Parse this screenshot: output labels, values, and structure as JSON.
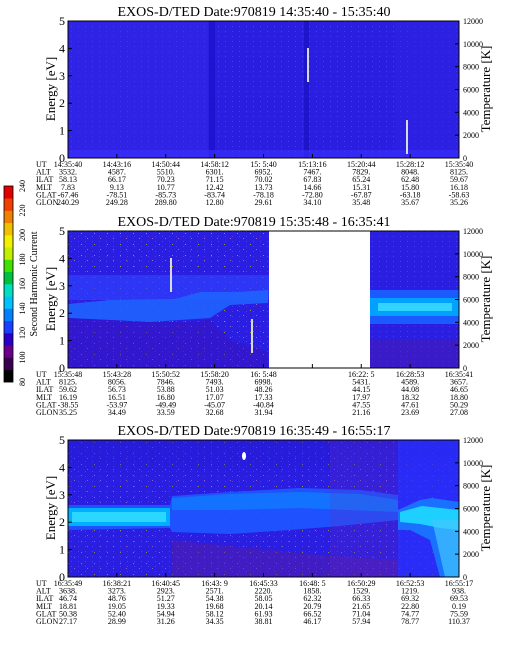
{
  "colorbar": {
    "label": "Second Harmonic Current",
    "ticks": [
      "80",
      "100",
      "120",
      "140",
      "160",
      "180",
      "200",
      "220",
      "240"
    ],
    "colors": [
      "#000000",
      "#3a0050",
      "#6a008a",
      "#2a00c8",
      "#1a40ff",
      "#0080ff",
      "#00c0ff",
      "#00e0c0",
      "#00c040",
      "#40e000",
      "#c0f000",
      "#f0f000",
      "#f0c000",
      "#f08000",
      "#f04000",
      "#e00000"
    ]
  },
  "chart_data": [
    {
      "type": "heatmap",
      "title": "EXOS-D/TED",
      "date": "Date:970819",
      "time_range": "14:35:40 - 15:35:40",
      "ylabel": "Energy [eV]",
      "y2label": "Temperature [K]",
      "ylim": [
        0,
        5
      ],
      "y2lim": [
        0,
        12000
      ],
      "yticks": [
        "0",
        "1",
        "2",
        "3",
        "4",
        "5"
      ],
      "y2ticks": [
        "0",
        "2000",
        "4000",
        "6000",
        "8000",
        "10000",
        "12000"
      ],
      "row_labels": [
        "UT",
        "ALT",
        "ILAT",
        "MLT",
        "GLAT",
        "GLON"
      ],
      "columns": [
        [
          "14:35:40",
          "3532.",
          "58.13",
          "7.83",
          "-67.46",
          "240.29"
        ],
        [
          "14:43:16",
          "4587.",
          "66.17",
          "9.13",
          "-78.51",
          "249.28"
        ],
        [
          "14:50:44",
          "5510.",
          "70.23",
          "10.77",
          "-85.73",
          "289.80"
        ],
        [
          "14:58:12",
          "6301.",
          "71.15",
          "12.42",
          "-83.74",
          "12.80"
        ],
        [
          "15: 5:40",
          "6952.",
          "70.02",
          "13.73",
          "-78.18",
          "29.61"
        ],
        [
          "15:13:16",
          "7467.",
          "67.83",
          "14.66",
          "-72.80",
          "34.10"
        ],
        [
          "15:20:44",
          "7829.",
          "65.24",
          "15.31",
          "-67.87",
          "35.48"
        ],
        [
          "15:28:12",
          "8048.",
          "62.48",
          "15.80",
          "-63.18",
          "35.67"
        ],
        [
          "15:35:40",
          "8125.",
          "59.67",
          "16.18",
          "-58.63",
          "35.26"
        ]
      ]
    },
    {
      "type": "heatmap",
      "title": "EXOS-D/TED",
      "date": "Date:970819",
      "time_range": "15:35:48 - 16:35:41",
      "ylabel": "Energy [eV]",
      "y2label": "Temperature [K]",
      "ylim": [
        0,
        5
      ],
      "y2lim": [
        0,
        12000
      ],
      "yticks": [
        "0",
        "1",
        "2",
        "3",
        "4",
        "5"
      ],
      "y2ticks": [
        "0",
        "2000",
        "4000",
        "6000",
        "8000",
        "10000",
        "12000"
      ],
      "row_labels": [
        "UT",
        "ALT",
        "ILAT",
        "MLT",
        "GLAT",
        "GLON"
      ],
      "columns": [
        [
          "15:35:48",
          "8125.",
          "59.62",
          "16.19",
          "-38.55",
          "35.25"
        ],
        [
          "15:43:28",
          "8056.",
          "56.73",
          "16.51",
          "-53.97",
          "34.49"
        ],
        [
          "15:50:52",
          "7846.",
          "53.88",
          "16.80",
          "-49.49",
          "33.59"
        ],
        [
          "15:58:20",
          "7493.",
          "51.03",
          "17.07",
          "-45.07",
          "32.68"
        ],
        [
          "16: 5:48",
          "6998.",
          "48.26",
          "17.33",
          "-40.84",
          "31.94"
        ],
        [
          "",
          "",
          "",
          "",
          "",
          ""
        ],
        [
          "16:22: 5",
          "5431.",
          "44.15",
          "17.97",
          "47.55",
          "21.16"
        ],
        [
          "16:28:53",
          "4589.",
          "44.08",
          "18.32",
          "47.61",
          "23.69"
        ],
        [
          "16:35:41",
          "3657.",
          "46.65",
          "18.80",
          "50.29",
          "27.08"
        ]
      ]
    },
    {
      "type": "heatmap",
      "title": "EXOS-D/TED",
      "date": "Date:970819",
      "time_range": "16:35:49 - 16:55:17",
      "ylabel": "Energy [eV]",
      "y2label": "Temperature [K]",
      "ylim": [
        0,
        5
      ],
      "y2lim": [
        0,
        12000
      ],
      "yticks": [
        "0",
        "1",
        "2",
        "3",
        "4",
        "5"
      ],
      "y2ticks": [
        "0",
        "2000",
        "4000",
        "6000",
        "8000",
        "10000",
        "12000"
      ],
      "row_labels": [
        "UT",
        "ALT",
        "ILAT",
        "MLT",
        "GLAT",
        "GLON"
      ],
      "columns": [
        [
          "16:35:49",
          "3638.",
          "46.74",
          "18.81",
          "50.38",
          "27.17"
        ],
        [
          "16:38:21",
          "3273.",
          "48.76",
          "19.05",
          "52.40",
          "28.99"
        ],
        [
          "16:40:45",
          "2923.",
          "51.27",
          "19.33",
          "54.94",
          "31.26"
        ],
        [
          "16:43: 9",
          "2571.",
          "54.38",
          "19.68",
          "58.12",
          "34.35"
        ],
        [
          "16:45:33",
          "2220.",
          "58.05",
          "20.14",
          "61.93",
          "38.81"
        ],
        [
          "16:48: 5",
          "1858.",
          "62.32",
          "20.79",
          "66.52",
          "46.17"
        ],
        [
          "16:50:29",
          "1529.",
          "66.33",
          "21.65",
          "71.04",
          "57.94"
        ],
        [
          "16:52:53",
          "1219.",
          "69.32",
          "22.80",
          "74.77",
          "78.77"
        ],
        [
          "16:55:17",
          "938.",
          "69.53",
          "0.19",
          "75.59",
          "110.37"
        ]
      ]
    }
  ]
}
